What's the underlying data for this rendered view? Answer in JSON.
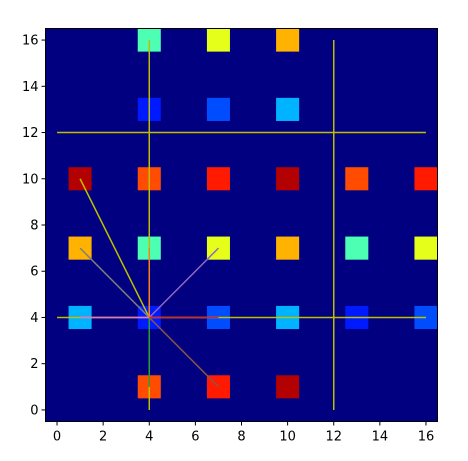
{
  "chart_data": {
    "type": "heatmap",
    "title": "",
    "xlabel": "",
    "ylabel": "",
    "xlim": [
      -0.5,
      16.5
    ],
    "ylim": [
      -0.5,
      16.5
    ],
    "x_ticks": [
      "0",
      "2",
      "4",
      "6",
      "8",
      "10",
      "12",
      "14",
      "16"
    ],
    "y_ticks": [
      "0",
      "2",
      "4",
      "6",
      "8",
      "10",
      "12",
      "14",
      "16"
    ],
    "grid": false,
    "background_color": "#000080",
    "colormap": "jet",
    "value_range": [
      0,
      1
    ],
    "cells": [
      {
        "x": 4,
        "y": 16,
        "value": 0.45
      },
      {
        "x": 7,
        "y": 16,
        "value": 0.6
      },
      {
        "x": 10,
        "y": 16,
        "value": 0.7
      },
      {
        "x": 4,
        "y": 13,
        "value": 0.15
      },
      {
        "x": 7,
        "y": 13,
        "value": 0.2
      },
      {
        "x": 10,
        "y": 13,
        "value": 0.3
      },
      {
        "x": 1,
        "y": 10,
        "value": 0.95
      },
      {
        "x": 4,
        "y": 10,
        "value": 0.8
      },
      {
        "x": 7,
        "y": 10,
        "value": 0.85
      },
      {
        "x": 10,
        "y": 10,
        "value": 0.95
      },
      {
        "x": 13,
        "y": 10,
        "value": 0.8
      },
      {
        "x": 16,
        "y": 10,
        "value": 0.85
      },
      {
        "x": 1,
        "y": 7,
        "value": 0.7
      },
      {
        "x": 4,
        "y": 7,
        "value": 0.45
      },
      {
        "x": 7,
        "y": 7,
        "value": 0.6
      },
      {
        "x": 10,
        "y": 7,
        "value": 0.7
      },
      {
        "x": 13,
        "y": 7,
        "value": 0.45
      },
      {
        "x": 16,
        "y": 7,
        "value": 0.6
      },
      {
        "x": 1,
        "y": 4,
        "value": 0.3
      },
      {
        "x": 4,
        "y": 4,
        "value": 0.15
      },
      {
        "x": 7,
        "y": 4,
        "value": 0.2
      },
      {
        "x": 10,
        "y": 4,
        "value": 0.3
      },
      {
        "x": 13,
        "y": 4,
        "value": 0.15
      },
      {
        "x": 16,
        "y": 4,
        "value": 0.2
      },
      {
        "x": 4,
        "y": 1,
        "value": 0.8
      },
      {
        "x": 7,
        "y": 1,
        "value": 0.85
      },
      {
        "x": 10,
        "y": 1,
        "value": 0.95
      }
    ],
    "lines": [
      {
        "x": [
          0,
          16
        ],
        "y": [
          12,
          12
        ],
        "color": "#bfbf00"
      },
      {
        "x": [
          0,
          16
        ],
        "y": [
          4,
          4
        ],
        "color": "#bfbf00"
      },
      {
        "x": [
          4,
          4
        ],
        "y": [
          0,
          16
        ],
        "color": "#bfbf00"
      },
      {
        "x": [
          12,
          12
        ],
        "y": [
          0,
          16
        ],
        "color": "#bfbf00"
      },
      {
        "x": [
          4,
          1
        ],
        "y": [
          4,
          10
        ],
        "color": "#bfbf00"
      },
      {
        "x": [
          4,
          1
        ],
        "y": [
          4,
          7
        ],
        "color": "#7f7f7f"
      },
      {
        "x": [
          4,
          7
        ],
        "y": [
          4,
          7
        ],
        "color": "#9467bd"
      },
      {
        "x": [
          4,
          7
        ],
        "y": [
          4,
          1
        ],
        "color": "#8c564b"
      },
      {
        "x": [
          4,
          4
        ],
        "y": [
          4,
          7
        ],
        "color": "#ff7f0e"
      },
      {
        "x": [
          4,
          4
        ],
        "y": [
          4,
          1
        ],
        "color": "#2ca02c"
      },
      {
        "x": [
          4,
          7
        ],
        "y": [
          4,
          4
        ],
        "color": "#d62728"
      },
      {
        "x": [
          1,
          4
        ],
        "y": [
          4,
          4
        ],
        "color": "#e377c2"
      }
    ]
  }
}
